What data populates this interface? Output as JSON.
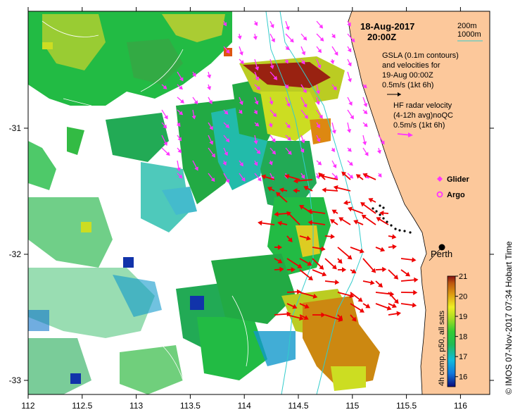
{
  "map": {
    "date_line1": "18-Aug-2017",
    "date_line2": "20:00Z",
    "isobath_labels": [
      "200m",
      "1000m"
    ],
    "gsla_legend": [
      "GSLA (0.1m contours)",
      "and velocities for",
      "19-Aug 00:00Z",
      "0.5m/s (1kt 6h)"
    ],
    "hf_legend": [
      "HF radar velocity",
      "(4-12h avg)noQC",
      "0.5m/s (1kt 6h)"
    ],
    "glider_label": "Glider",
    "argo_label": "Argo",
    "city_label": "Perth",
    "credit": "© IMOS 07-Nov-2017 07:34 Hobart Time",
    "x_ticks": [
      "112",
      "112.5",
      "113",
      "113.5",
      "114",
      "114.5",
      "115",
      "115.5",
      "116"
    ],
    "y_ticks": [
      "-31",
      "-32",
      "-33"
    ],
    "colorbar": {
      "title": "4h comp, p50, all sats",
      "ticks": [
        "21",
        "20",
        "19",
        "18",
        "17",
        "16"
      ],
      "range": [
        15.5,
        21
      ]
    },
    "colors": {
      "land": "#fcc89b",
      "glider": "#ff33ff",
      "argo": "#ff33ff",
      "gsla_arrow": "#ff33ff",
      "hf_arrow": "#ee0000",
      "isobath_200": "#33cccc",
      "isobath_1000": "#33cccc"
    }
  }
}
